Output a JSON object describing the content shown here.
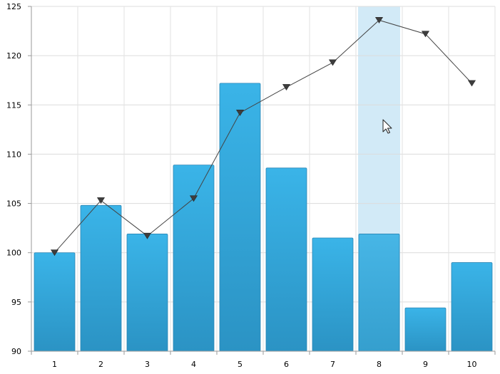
{
  "chart_data": {
    "type": "bar",
    "categories": [
      "1",
      "2",
      "3",
      "4",
      "5",
      "6",
      "7",
      "8",
      "9",
      "10"
    ],
    "series": [
      {
        "type": "bar",
        "values": [
          100.0,
          104.8,
          101.9,
          108.9,
          117.2,
          108.6,
          101.5,
          101.9,
          94.4,
          99.0
        ],
        "color": "#33a8dd"
      },
      {
        "type": "line",
        "marker": "triangle-down",
        "values": [
          100.0,
          105.3,
          101.7,
          105.5,
          114.2,
          116.8,
          119.3,
          123.6,
          122.2,
          117.2
        ],
        "color": "#444444"
      }
    ],
    "ylim": [
      90,
      125
    ],
    "yticks": [
      90,
      95,
      100,
      105,
      110,
      115,
      120,
      125
    ],
    "grid": true,
    "highlighted_category": "8",
    "highlight_color": "#d2eaf7",
    "legend": "none"
  }
}
